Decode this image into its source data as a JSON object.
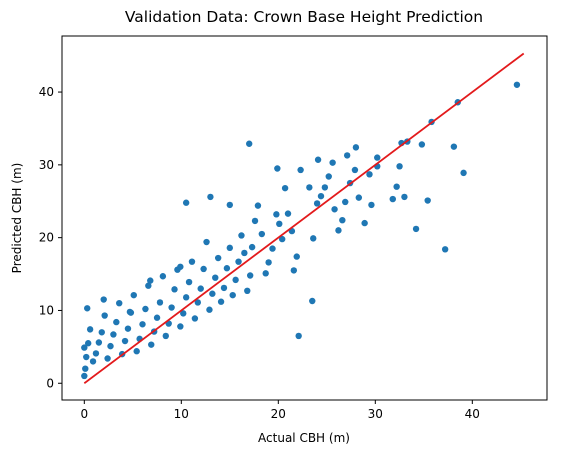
{
  "chart_data": {
    "type": "scatter",
    "title": "Validation Data: Crown Base Height Prediction",
    "xlabel": "Actual CBH (m)",
    "ylabel": "Predicted CBH (m)",
    "xlim": [
      -2.3,
      47.7
    ],
    "ylim": [
      -2.3,
      47.7
    ],
    "xticks": [
      0,
      10,
      20,
      30,
      40
    ],
    "yticks": [
      0,
      10,
      20,
      30,
      40
    ],
    "grid": false,
    "colors": {
      "points": "#1f77b4",
      "line": "#e31a1c",
      "axes": "#000000"
    },
    "reference_line": {
      "x": [
        0,
        45.3
      ],
      "y": [
        0,
        45.3
      ]
    },
    "series": [
      {
        "points": [
          [
            44.6,
            41.0
          ],
          [
            38.5,
            38.6
          ],
          [
            35.8,
            35.9
          ],
          [
            33.3,
            33.2
          ],
          [
            34.8,
            32.8
          ],
          [
            38.1,
            32.5
          ],
          [
            39.1,
            28.9
          ],
          [
            37.2,
            18.4
          ],
          [
            35.4,
            25.1
          ],
          [
            34.2,
            21.2
          ],
          [
            33.0,
            25.6
          ],
          [
            32.5,
            29.8
          ],
          [
            32.2,
            27.0
          ],
          [
            31.8,
            25.3
          ],
          [
            30.2,
            29.8
          ],
          [
            29.4,
            28.7
          ],
          [
            29.6,
            24.5
          ],
          [
            28.9,
            22.0
          ],
          [
            28.3,
            25.5
          ],
          [
            27.9,
            29.3
          ],
          [
            27.4,
            27.5
          ],
          [
            26.9,
            24.9
          ],
          [
            26.6,
            22.4
          ],
          [
            26.2,
            21.0
          ],
          [
            25.8,
            23.9
          ],
          [
            25.2,
            28.4
          ],
          [
            24.8,
            26.9
          ],
          [
            24.4,
            25.7
          ],
          [
            24.0,
            24.7
          ],
          [
            23.6,
            19.9
          ],
          [
            23.2,
            26.9
          ],
          [
            23.5,
            11.3
          ],
          [
            22.1,
            6.5
          ],
          [
            21.6,
            15.5
          ],
          [
            21.9,
            17.4
          ],
          [
            21.4,
            20.9
          ],
          [
            21.0,
            23.3
          ],
          [
            20.7,
            26.8
          ],
          [
            20.4,
            19.8
          ],
          [
            20.1,
            21.9
          ],
          [
            19.8,
            23.2
          ],
          [
            19.4,
            18.5
          ],
          [
            19.0,
            16.6
          ],
          [
            18.7,
            15.1
          ],
          [
            18.3,
            20.5
          ],
          [
            17.9,
            24.4
          ],
          [
            17.6,
            22.3
          ],
          [
            17.3,
            18.7
          ],
          [
            17.1,
            14.8
          ],
          [
            16.8,
            12.7
          ],
          [
            16.5,
            17.9
          ],
          [
            16.2,
            20.3
          ],
          [
            15.9,
            16.7
          ],
          [
            15.6,
            14.2
          ],
          [
            15.3,
            12.1
          ],
          [
            15.0,
            18.6
          ],
          [
            14.7,
            15.8
          ],
          [
            14.4,
            13.1
          ],
          [
            14.1,
            11.2
          ],
          [
            13.8,
            17.2
          ],
          [
            13.5,
            14.5
          ],
          [
            13.2,
            12.3
          ],
          [
            12.9,
            10.1
          ],
          [
            12.6,
            19.4
          ],
          [
            12.3,
            15.7
          ],
          [
            12.0,
            13.0
          ],
          [
            11.7,
            11.1
          ],
          [
            11.4,
            8.9
          ],
          [
            11.1,
            16.7
          ],
          [
            10.8,
            13.9
          ],
          [
            10.5,
            11.8
          ],
          [
            10.2,
            9.6
          ],
          [
            9.9,
            7.8
          ],
          [
            9.6,
            15.6
          ],
          [
            9.3,
            12.9
          ],
          [
            9.0,
            10.4
          ],
          [
            8.7,
            8.2
          ],
          [
            8.4,
            6.5
          ],
          [
            8.1,
            14.7
          ],
          [
            7.8,
            11.1
          ],
          [
            7.5,
            9.0
          ],
          [
            7.2,
            7.1
          ],
          [
            6.9,
            5.3
          ],
          [
            6.6,
            13.4
          ],
          [
            6.3,
            10.2
          ],
          [
            6.0,
            8.1
          ],
          [
            5.7,
            6.1
          ],
          [
            5.4,
            4.4
          ],
          [
            5.1,
            12.1
          ],
          [
            4.8,
            9.7
          ],
          [
            4.5,
            7.5
          ],
          [
            4.2,
            5.8
          ],
          [
            3.9,
            4.0
          ],
          [
            3.6,
            11.0
          ],
          [
            3.3,
            8.4
          ],
          [
            3.0,
            6.7
          ],
          [
            2.7,
            5.1
          ],
          [
            2.4,
            3.4
          ],
          [
            2.1,
            9.3
          ],
          [
            1.8,
            7.0
          ],
          [
            1.5,
            5.6
          ],
          [
            1.2,
            4.1
          ],
          [
            0.9,
            3.0
          ],
          [
            0.6,
            7.4
          ],
          [
            0.4,
            5.5
          ],
          [
            0.2,
            3.6
          ],
          [
            0.1,
            2.0
          ],
          [
            0.0,
            1.0
          ],
          [
            0.0,
            4.9
          ],
          [
            0.3,
            10.3
          ],
          [
            2.0,
            11.5
          ],
          [
            4.7,
            9.8
          ],
          [
            6.8,
            14.1
          ],
          [
            9.9,
            16.0
          ],
          [
            10.5,
            24.8
          ],
          [
            13.0,
            25.6
          ],
          [
            15.0,
            24.5
          ],
          [
            17.0,
            32.9
          ],
          [
            19.9,
            29.5
          ],
          [
            22.3,
            29.3
          ],
          [
            24.1,
            30.7
          ],
          [
            25.6,
            30.3
          ],
          [
            27.1,
            31.3
          ],
          [
            28.0,
            32.4
          ],
          [
            30.2,
            31.0
          ],
          [
            32.7,
            33.0
          ]
        ]
      }
    ]
  }
}
